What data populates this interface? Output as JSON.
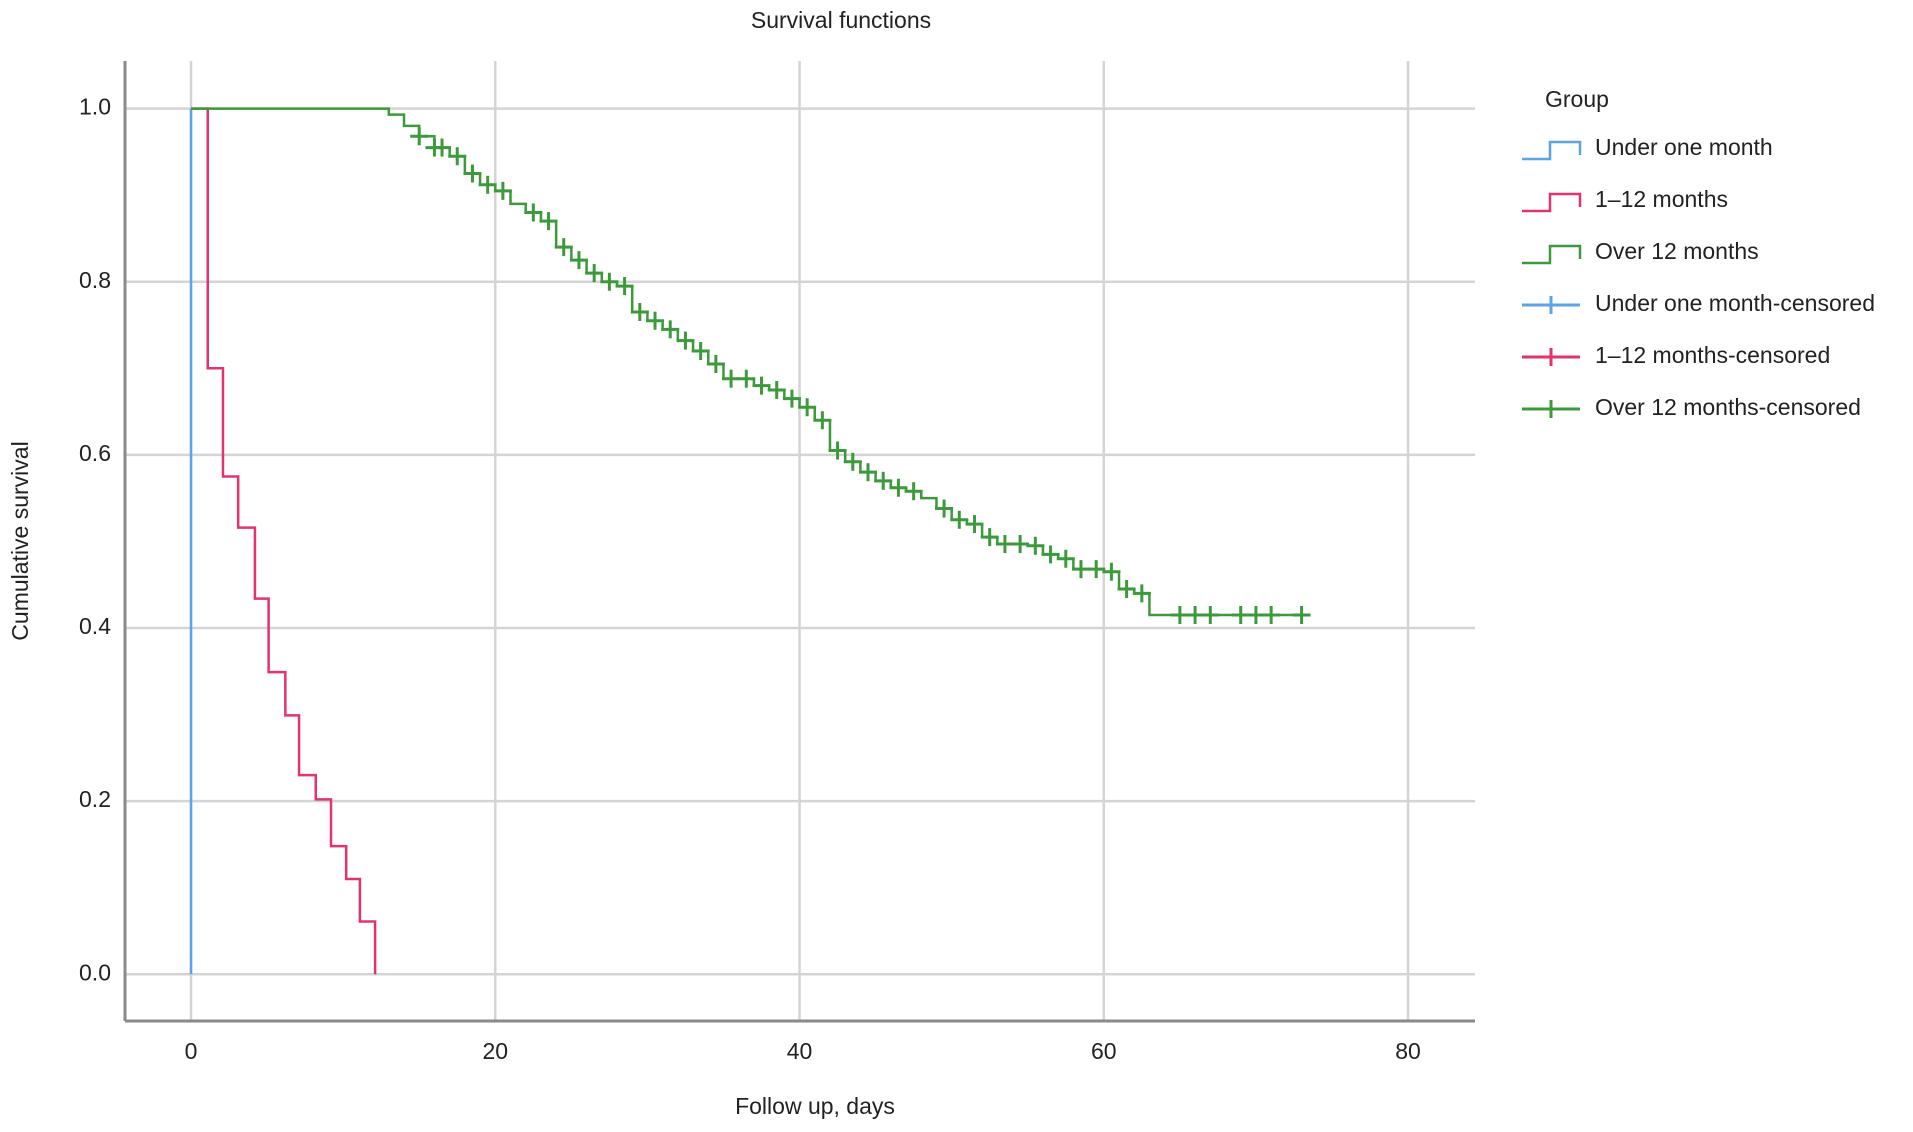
{
  "chart_data": {
    "type": "km",
    "title": "Survival functions",
    "x_label": "Follow up, days",
    "y_label": "Cumulative survival",
    "legend_title": "Group",
    "xlim": [
      -4.34,
      84.4
    ],
    "ylim": [
      -0.054,
      1.055
    ],
    "xticks": [
      0,
      20,
      40,
      60,
      80
    ],
    "yticks": [
      {
        "value": 0,
        "label": "0.0"
      },
      {
        "value": 0.2,
        "label": "0.2"
      },
      {
        "value": 0.4,
        "label": "0.4"
      },
      {
        "value": 0.6,
        "label": "0.6"
      },
      {
        "value": 0.8,
        "label": "0.8"
      },
      {
        "value": 1,
        "label": "1.0"
      }
    ],
    "grid": true,
    "series": [
      {
        "name": "Under one month",
        "color": "#5ea3e6",
        "kind": "step",
        "x": [
          0,
          0
        ],
        "values": [
          1.0,
          0.0
        ]
      },
      {
        "name": "1–12 months",
        "color": "#e2336b",
        "kind": "step",
        "x": [
          0,
          1.1,
          2.1,
          3.1,
          4.2,
          5.1,
          6.2,
          7.1,
          8.2,
          9.2,
          10.2,
          11.1,
          12.1
        ],
        "values": [
          1.0,
          0.7,
          0.575,
          0.516,
          0.434,
          0.349,
          0.299,
          0.23,
          0.202,
          0.148,
          0.11,
          0.061,
          0.0
        ]
      },
      {
        "name": "Over 12 months",
        "color": "#3c9a3c",
        "kind": "step",
        "x": [
          0,
          13,
          14,
          15,
          16,
          17,
          18,
          19,
          20,
          21,
          22,
          23,
          24,
          25,
          26,
          27,
          28,
          29,
          30,
          31,
          32,
          33,
          34,
          35,
          37,
          38,
          39,
          40,
          41,
          42,
          43,
          44,
          45,
          46,
          47,
          48,
          49,
          50,
          51,
          52,
          53,
          55,
          56,
          57,
          58,
          60,
          61,
          62,
          63,
          73.5
        ],
        "values": [
          1.0,
          0.993,
          0.98,
          0.968,
          0.955,
          0.945,
          0.925,
          0.912,
          0.905,
          0.89,
          0.88,
          0.87,
          0.84,
          0.825,
          0.81,
          0.8,
          0.795,
          0.765,
          0.755,
          0.745,
          0.732,
          0.72,
          0.705,
          0.688,
          0.68,
          0.675,
          0.665,
          0.655,
          0.64,
          0.605,
          0.592,
          0.58,
          0.57,
          0.562,
          0.558,
          0.55,
          0.538,
          0.525,
          0.52,
          0.505,
          0.497,
          0.495,
          0.485,
          0.48,
          0.468,
          0.465,
          0.445,
          0.44,
          0.415,
          0.415
        ]
      },
      {
        "name": "Under one month-censored",
        "color": "#5ea3e6",
        "kind": "censored",
        "x": [],
        "values": []
      },
      {
        "name": "1–12 months-censored",
        "color": "#e2336b",
        "kind": "censored",
        "x": [],
        "values": []
      },
      {
        "name": "Over 12 months-censored",
        "color": "#3c9a3c",
        "kind": "censored",
        "x": [
          15,
          16,
          16.5,
          17.5,
          18.5,
          19.5,
          20.5,
          22.5,
          23.5,
          24.5,
          25.5,
          26.5,
          27.5,
          28.5,
          29.5,
          30.5,
          31.5,
          32.5,
          33.5,
          34.5,
          35.5,
          36.5,
          37.5,
          38.5,
          39.5,
          40.5,
          41.5,
          42.5,
          43.5,
          44.5,
          45.5,
          46.5,
          47.5,
          49.5,
          50.5,
          51.5,
          52.5,
          53.5,
          54.5,
          55.5,
          56.5,
          57.5,
          58.5,
          59.5,
          60.5,
          61.5,
          62.5,
          65,
          66,
          67,
          69,
          70,
          71,
          73
        ],
        "values": [
          0.968,
          0.955,
          0.955,
          0.945,
          0.925,
          0.912,
          0.905,
          0.88,
          0.87,
          0.84,
          0.825,
          0.81,
          0.8,
          0.795,
          0.765,
          0.755,
          0.745,
          0.732,
          0.72,
          0.705,
          0.688,
          0.688,
          0.68,
          0.675,
          0.665,
          0.655,
          0.64,
          0.605,
          0.592,
          0.58,
          0.57,
          0.562,
          0.558,
          0.538,
          0.525,
          0.52,
          0.505,
          0.497,
          0.497,
          0.495,
          0.485,
          0.48,
          0.468,
          0.468,
          0.465,
          0.445,
          0.44,
          0.415,
          0.415,
          0.415,
          0.415,
          0.415,
          0.415,
          0.415
        ]
      }
    ]
  }
}
